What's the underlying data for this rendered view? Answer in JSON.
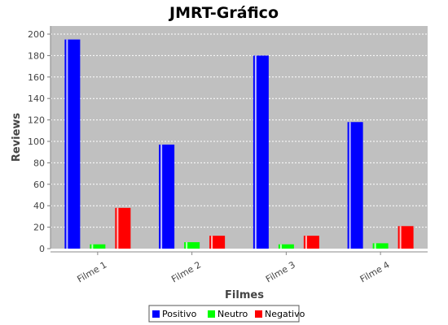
{
  "chart_data": {
    "type": "bar",
    "title": "JMRT-Gráfico",
    "xlabel": "Filmes",
    "ylabel": "Reviews",
    "categories": [
      "Filme 1",
      "Filme 2",
      "Filme 3",
      "Filme 4"
    ],
    "ylim": [
      0,
      200
    ],
    "yticks": [
      0,
      20,
      40,
      60,
      80,
      100,
      120,
      140,
      160,
      180,
      200
    ],
    "grid": true,
    "legend_position": "bottom",
    "plot_background": "#c0c0c0",
    "series": [
      {
        "name": "Positivo",
        "color": "#0000ff",
        "values": [
          195,
          97,
          180,
          118
        ]
      },
      {
        "name": "Neutro",
        "color": "#00ff00",
        "values": [
          4,
          6,
          4,
          5
        ]
      },
      {
        "name": "Negativo",
        "color": "#ff0000",
        "values": [
          38,
          12,
          12,
          21
        ]
      }
    ]
  }
}
